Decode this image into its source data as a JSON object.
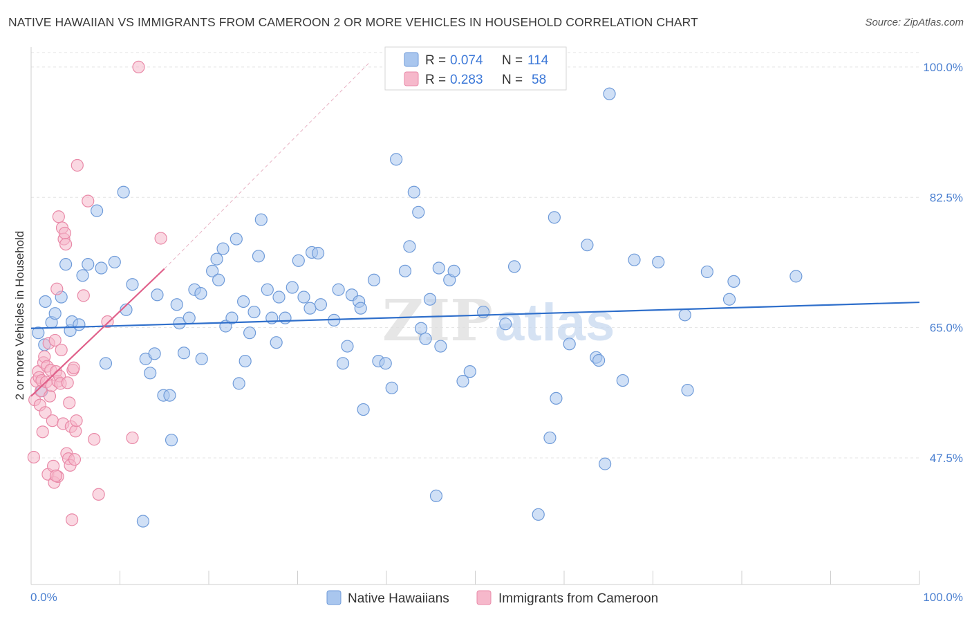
{
  "title": "NATIVE HAWAIIAN VS IMMIGRANTS FROM CAMEROON 2 OR MORE VEHICLES IN HOUSEHOLD CORRELATION CHART",
  "source": "Source: ZipAtlas.com",
  "watermark": {
    "part1": "ZIP",
    "part2": "atlas"
  },
  "colors": {
    "blue_fill": "#a9c6ee",
    "blue_stroke": "#6f9bd9",
    "blue_line": "#2f6fcb",
    "pink_fill": "#f6b8cb",
    "pink_stroke": "#e98aa8",
    "pink_line": "#e0608a",
    "tick": "#4a7fd0",
    "grid": "#e3e3e3"
  },
  "chart_data": {
    "type": "scatter",
    "title": "NATIVE HAWAIIAN VS IMMIGRANTS FROM CAMEROON 2 OR MORE VEHICLES IN HOUSEHOLD CORRELATION CHART",
    "xlabel": "",
    "ylabel": "2 or more Vehicles in Household",
    "xlim": [
      0,
      100
    ],
    "ylim": [
      30.5,
      102.5
    ],
    "x_tick_labels": {
      "min": "0.0%",
      "max": "100.0%"
    },
    "y_ticks": [
      {
        "value": 47.5,
        "label": "47.5%"
      },
      {
        "value": 65.0,
        "label": "65.0%"
      },
      {
        "value": 82.5,
        "label": "82.5%"
      },
      {
        "value": 100.0,
        "label": "100.0%"
      }
    ],
    "legend": [
      {
        "key": "blue",
        "r_label": "R =",
        "r_value": "0.074",
        "n_label": "N =",
        "n_value": "114"
      },
      {
        "key": "pink",
        "r_label": "R =",
        "r_value": "0.283",
        "n_label": "N =",
        "n_value": "58"
      }
    ],
    "series": [
      {
        "name": "Native Hawaiians",
        "key": "blue",
        "trend": {
          "x0": 0,
          "y0": 64.9,
          "x1": 100,
          "y1": 68.4
        },
        "points": [
          [
            0.8,
            64.3
          ],
          [
            1.2,
            56.5
          ],
          [
            1.5,
            62.7
          ],
          [
            1.6,
            68.5
          ],
          [
            2.3,
            65.7
          ],
          [
            2.7,
            66.9
          ],
          [
            3.4,
            69.1
          ],
          [
            3.9,
            73.5
          ],
          [
            4.4,
            64.6
          ],
          [
            4.6,
            65.8
          ],
          [
            5.4,
            65.4
          ],
          [
            5.8,
            72.0
          ],
          [
            6.4,
            73.5
          ],
          [
            7.4,
            80.7
          ],
          [
            7.9,
            73.0
          ],
          [
            8.4,
            60.2
          ],
          [
            9.4,
            73.8
          ],
          [
            10.4,
            83.2
          ],
          [
            10.7,
            67.4
          ],
          [
            11.4,
            70.8
          ],
          [
            12.9,
            60.8
          ],
          [
            13.4,
            58.9
          ],
          [
            13.9,
            61.5
          ],
          [
            14.2,
            69.4
          ],
          [
            14.9,
            55.9
          ],
          [
            15.6,
            55.9
          ],
          [
            15.8,
            49.9
          ],
          [
            16.4,
            68.1
          ],
          [
            16.7,
            65.6
          ],
          [
            17.2,
            61.6
          ],
          [
            17.8,
            66.3
          ],
          [
            18.4,
            70.1
          ],
          [
            19.1,
            69.6
          ],
          [
            19.2,
            60.8
          ],
          [
            20.4,
            72.6
          ],
          [
            20.9,
            74.2
          ],
          [
            21.1,
            71.4
          ],
          [
            21.6,
            75.6
          ],
          [
            21.9,
            65.2
          ],
          [
            22.6,
            66.3
          ],
          [
            23.1,
            76.9
          ],
          [
            23.4,
            57.5
          ],
          [
            23.9,
            68.5
          ],
          [
            24.1,
            60.5
          ],
          [
            24.6,
            64.3
          ],
          [
            25.1,
            67.1
          ],
          [
            25.6,
            74.6
          ],
          [
            25.9,
            79.5
          ],
          [
            26.6,
            70.1
          ],
          [
            27.1,
            66.3
          ],
          [
            27.6,
            63.0
          ],
          [
            27.9,
            69.1
          ],
          [
            28.6,
            66.3
          ],
          [
            29.4,
            70.4
          ],
          [
            30.1,
            74.0
          ],
          [
            30.7,
            69.1
          ],
          [
            31.4,
            67.6
          ],
          [
            31.6,
            75.1
          ],
          [
            32.3,
            75.0
          ],
          [
            32.6,
            68.1
          ],
          [
            34.1,
            66.0
          ],
          [
            34.6,
            70.1
          ],
          [
            35.1,
            60.2
          ],
          [
            35.6,
            62.5
          ],
          [
            36.1,
            69.4
          ],
          [
            36.9,
            68.5
          ],
          [
            37.1,
            67.6
          ],
          [
            37.4,
            54.0
          ],
          [
            38.6,
            71.4
          ],
          [
            39.1,
            60.5
          ],
          [
            39.9,
            60.2
          ],
          [
            40.6,
            56.9
          ],
          [
            41.1,
            87.6
          ],
          [
            42.1,
            72.6
          ],
          [
            42.6,
            75.9
          ],
          [
            43.1,
            83.2
          ],
          [
            43.6,
            80.5
          ],
          [
            43.9,
            64.9
          ],
          [
            44.4,
            63.5
          ],
          [
            44.9,
            68.8
          ],
          [
            45.6,
            42.4
          ],
          [
            45.9,
            73.0
          ],
          [
            46.1,
            62.5
          ],
          [
            47.1,
            71.4
          ],
          [
            47.6,
            72.6
          ],
          [
            48.6,
            57.8
          ],
          [
            49.4,
            59.1
          ],
          [
            50.9,
            67.1
          ],
          [
            53.4,
            65.5
          ],
          [
            54.4,
            73.2
          ],
          [
            57.1,
            39.9
          ],
          [
            58.4,
            50.2
          ],
          [
            58.9,
            79.8
          ],
          [
            59.1,
            55.5
          ],
          [
            60.6,
            62.8
          ],
          [
            62.6,
            76.1
          ],
          [
            63.6,
            61.0
          ],
          [
            63.9,
            60.6
          ],
          [
            64.6,
            46.7
          ],
          [
            65.1,
            96.4
          ],
          [
            66.6,
            57.9
          ],
          [
            67.9,
            74.1
          ],
          [
            70.6,
            73.8
          ],
          [
            73.6,
            66.7
          ],
          [
            73.9,
            56.6
          ],
          [
            76.1,
            72.5
          ],
          [
            78.6,
            68.8
          ],
          [
            79.1,
            71.2
          ],
          [
            86.1,
            71.9
          ],
          [
            12.6,
            39.0
          ]
        ]
      },
      {
        "name": "Immigrants from Cameroon",
        "key": "pink",
        "trend": {
          "x0": 0,
          "y0": 55.8,
          "x1": 15,
          "y1": 72.9
        },
        "dashed": {
          "x0": 15,
          "y0": 72.9,
          "x1": 38,
          "y1": 100.5
        },
        "points": [
          [
            0.3,
            47.6
          ],
          [
            0.4,
            55.3
          ],
          [
            0.6,
            57.8
          ],
          [
            0.8,
            59.1
          ],
          [
            0.9,
            58.3
          ],
          [
            1.0,
            54.6
          ],
          [
            1.1,
            56.5
          ],
          [
            1.2,
            57.9
          ],
          [
            1.3,
            51.0
          ],
          [
            1.4,
            60.3
          ],
          [
            1.5,
            61.1
          ],
          [
            1.6,
            53.6
          ],
          [
            1.7,
            57.7
          ],
          [
            1.8,
            59.8
          ],
          [
            1.9,
            45.3
          ],
          [
            2.0,
            62.9
          ],
          [
            2.1,
            55.8
          ],
          [
            2.2,
            59.3
          ],
          [
            2.3,
            57.2
          ],
          [
            2.4,
            52.5
          ],
          [
            2.5,
            46.4
          ],
          [
            2.6,
            44.2
          ],
          [
            2.7,
            63.3
          ],
          [
            2.8,
            59.1
          ],
          [
            2.9,
            70.2
          ],
          [
            3.0,
            57.8
          ],
          [
            3.1,
            79.9
          ],
          [
            3.2,
            58.5
          ],
          [
            3.3,
            57.5
          ],
          [
            3.4,
            62.0
          ],
          [
            3.5,
            78.4
          ],
          [
            3.6,
            52.1
          ],
          [
            3.7,
            76.9
          ],
          [
            3.8,
            77.7
          ],
          [
            3.9,
            76.2
          ],
          [
            4.0,
            48.1
          ],
          [
            4.1,
            57.6
          ],
          [
            4.2,
            47.4
          ],
          [
            4.3,
            54.9
          ],
          [
            4.4,
            46.5
          ],
          [
            4.5,
            51.7
          ],
          [
            4.6,
            39.2
          ],
          [
            4.7,
            59.3
          ],
          [
            4.8,
            59.6
          ],
          [
            4.9,
            47.3
          ],
          [
            5.0,
            51.1
          ],
          [
            5.1,
            52.5
          ],
          [
            5.2,
            86.8
          ],
          [
            5.9,
            69.3
          ],
          [
            6.4,
            82.0
          ],
          [
            7.1,
            50.0
          ],
          [
            7.6,
            42.6
          ],
          [
            8.6,
            65.8
          ],
          [
            11.4,
            50.2
          ],
          [
            12.1,
            100.0
          ],
          [
            14.6,
            77.0
          ],
          [
            3.0,
            45.0
          ],
          [
            2.8,
            45.1
          ]
        ]
      }
    ]
  }
}
